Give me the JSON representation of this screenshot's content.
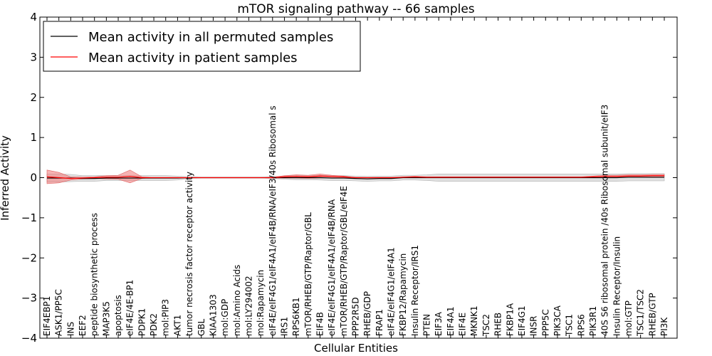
{
  "chart_data": {
    "type": "line",
    "title": "mTOR signaling pathway -- 66 samples",
    "xlabel": "Cellular Entities",
    "ylabel": "Inferred Activity",
    "ylim": [
      -4,
      4
    ],
    "yticks": [
      -4,
      -3,
      -2,
      -1,
      0,
      1,
      2,
      3,
      4
    ],
    "yticklabels": [
      "−4",
      "−3",
      "−2",
      "−1",
      "0",
      "1",
      "2",
      "3",
      "4"
    ],
    "grid": false,
    "legend_position": "top-left",
    "categories": [
      "EIF4EBP1",
      "ASK1/PP5C",
      "INS",
      "EEF2",
      "peptide biosynthetic process",
      "MAP3K5",
      "apoptosis",
      "eIF4E/4E-BP1",
      "PDPK1",
      "PDK2",
      "mol:PIP3",
      "AKT1",
      "tumor necrosis factor receptor activity",
      "GBL",
      "KIAA1303",
      "mol:GDP",
      "mol:Amino Acids",
      "mol:LY294002",
      "mol:Rapamycin",
      "eIF4E/eIF4G1/eIF4A1/eIF4B/RNA/eIF3/40s Ribosomal s",
      "IRS1",
      "RPS6KB1",
      "mTOR/RHEB/GTP/Raptor/GBL",
      "EIF4B",
      "eIF4E/eIF4G1/eIF4A1/eIF4B/RNA",
      "mTOR/RHEB/GTP/Raptor/GBL/eIF4E",
      "PPP2R5D",
      "RHEB/GDP",
      "FRAP1",
      "eIF4E/eIF4G1/eIF4A1",
      "FKBP12/Rapamycin",
      "Insulin Receptor/IRS1",
      "PTEN",
      "EIF3A",
      "EIF4A1",
      "EIF4E",
      "MKNK1",
      "TSC2",
      "RHEB",
      "FKBP1A",
      "EIF4G1",
      "INSR",
      "PPP5C",
      "PIK3CA",
      "TSC1",
      "RPS6",
      "PIK3R1",
      "40S S6 ribosomal protein /40s Ribosomal subunit/eIF3",
      "Insulin Receptor/Insulin",
      "mol:GTP",
      "TSC1/TSC2",
      "RHEB/GTP",
      "PI3K"
    ],
    "series": [
      {
        "name": "Mean activity in all permuted samples",
        "color": "#000000",
        "values": [
          -0.01,
          -0.01,
          -0.01,
          -0.02,
          -0.02,
          -0.01,
          -0.01,
          -0.01,
          -0.01,
          -0.01,
          -0.01,
          -0.01,
          0.0,
          0.0,
          0.0,
          0.0,
          0.0,
          0.0,
          0.0,
          0.0,
          0.0,
          0.0,
          0.0,
          0.0,
          -0.01,
          -0.01,
          -0.02,
          -0.03,
          -0.02,
          -0.02,
          0.0,
          0.0,
          0.0,
          0.0,
          0.0,
          0.0,
          0.0,
          0.0,
          0.0,
          0.0,
          0.0,
          0.0,
          0.0,
          0.0,
          0.0,
          0.0,
          0.0,
          0.0,
          0.0,
          0.01,
          0.01,
          0.01,
          0.01
        ],
        "band": [
          0.1,
          0.1,
          0.09,
          0.07,
          0.07,
          0.06,
          0.06,
          0.06,
          0.06,
          0.06,
          0.06,
          0.05,
          0.02,
          0.01,
          0.01,
          0.01,
          0.01,
          0.01,
          0.01,
          0.02,
          0.04,
          0.05,
          0.05,
          0.06,
          0.06,
          0.06,
          0.06,
          0.06,
          0.06,
          0.06,
          0.06,
          0.06,
          0.07,
          0.09,
          0.09,
          0.09,
          0.09,
          0.09,
          0.09,
          0.09,
          0.09,
          0.09,
          0.09,
          0.09,
          0.09,
          0.09,
          0.09,
          0.09,
          0.09,
          0.09,
          0.09,
          0.09,
          0.09
        ]
      },
      {
        "name": "Mean activity in patient samples",
        "color": "#ff0000",
        "fill": "#f08080",
        "values": [
          0.02,
          0.0,
          -0.02,
          -0.01,
          0.0,
          0.01,
          0.01,
          0.03,
          0.0,
          0.0,
          0.0,
          0.0,
          0.0,
          0.0,
          0.0,
          0.0,
          0.0,
          0.0,
          0.0,
          0.0,
          0.02,
          0.03,
          0.02,
          0.04,
          0.03,
          0.02,
          0.0,
          0.0,
          0.0,
          0.0,
          0.01,
          0.02,
          0.01,
          0.01,
          0.01,
          0.01,
          0.01,
          0.01,
          0.01,
          0.01,
          0.01,
          0.01,
          0.01,
          0.01,
          0.01,
          0.01,
          0.02,
          0.03,
          0.03,
          0.04,
          0.04,
          0.05,
          0.05
        ],
        "band": [
          0.17,
          0.13,
          0.04,
          0.02,
          0.02,
          0.04,
          0.05,
          0.16,
          0.02,
          0.0,
          0.0,
          0.0,
          0.0,
          0.0,
          0.0,
          0.0,
          0.0,
          0.0,
          0.0,
          0.01,
          0.03,
          0.04,
          0.04,
          0.05,
          0.03,
          0.02,
          0.0,
          0.0,
          0.0,
          0.0,
          0.01,
          0.01,
          0.01,
          0.01,
          0.01,
          0.01,
          0.01,
          0.01,
          0.01,
          0.01,
          0.01,
          0.01,
          0.01,
          0.01,
          0.01,
          0.01,
          0.02,
          0.03,
          0.03,
          0.03,
          0.03,
          0.03,
          0.03
        ]
      }
    ]
  }
}
